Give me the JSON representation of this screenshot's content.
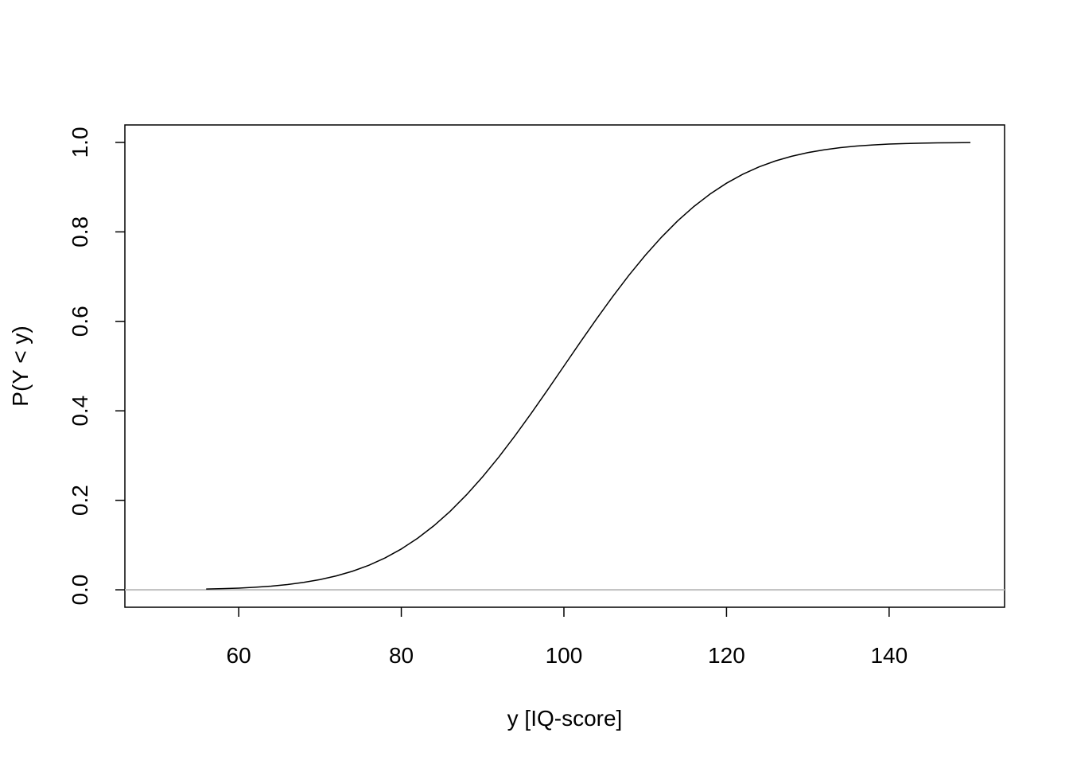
{
  "chart_data": {
    "type": "line",
    "x_label": "y [IQ-score]",
    "y_label": "P(Y < y)",
    "x": [
      56,
      58,
      60,
      62,
      64,
      66,
      68,
      70,
      72,
      74,
      76,
      78,
      80,
      82,
      84,
      86,
      88,
      90,
      92,
      94,
      96,
      98,
      100,
      102,
      104,
      106,
      108,
      110,
      112,
      114,
      116,
      118,
      120,
      122,
      124,
      126,
      128,
      130,
      132,
      134,
      136,
      138,
      140,
      142,
      144,
      146,
      148,
      150
    ],
    "series": [
      {
        "color": "#000000",
        "values": [
          0.0017,
          0.0026,
          0.0038,
          0.0057,
          0.0082,
          0.0117,
          0.0165,
          0.0228,
          0.031,
          0.0415,
          0.0548,
          0.0712,
          0.0912,
          0.1151,
          0.1431,
          0.1753,
          0.2119,
          0.2525,
          0.2969,
          0.3446,
          0.3949,
          0.447,
          0.5,
          0.553,
          0.6051,
          0.6554,
          0.7031,
          0.7475,
          0.7881,
          0.8247,
          0.8569,
          0.8849,
          0.9088,
          0.9288,
          0.9452,
          0.9585,
          0.969,
          0.9772,
          0.9835,
          0.9883,
          0.9918,
          0.9943,
          0.9962,
          0.9974,
          0.9983,
          0.9989,
          0.9993,
          0.9996
        ]
      }
    ],
    "hline": {
      "value": 0,
      "color": "#bebebe"
    },
    "xlim": [
      46,
      154.2
    ],
    "xticks": [
      60,
      80,
      100,
      120,
      140
    ],
    "ylim": [
      -0.039,
      1.039
    ],
    "yticks": [
      {
        "value": 0,
        "label": "0.0"
      },
      {
        "value": 0.2,
        "label": "0.2"
      },
      {
        "value": 0.4,
        "label": "0.4"
      },
      {
        "value": 0.6,
        "label": "0.6"
      },
      {
        "value": 0.8,
        "label": "0.8"
      },
      {
        "value": 1,
        "label": "1.0"
      }
    ]
  }
}
